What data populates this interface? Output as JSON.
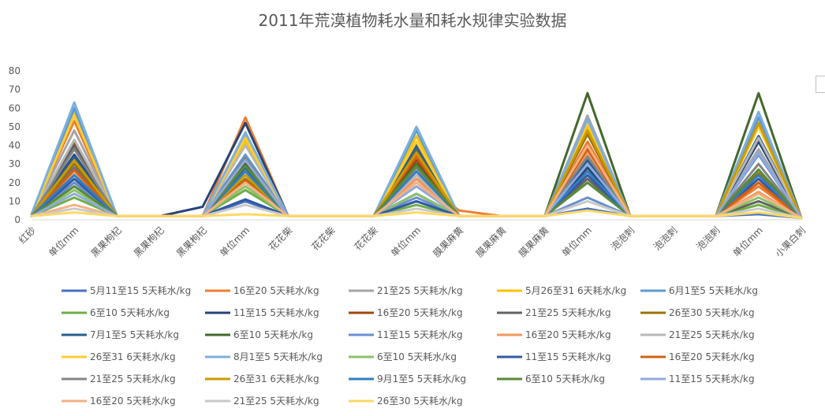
{
  "chart_data": {
    "type": "line",
    "title": "2011年荒漠植物耗水量和耗水规律实验数据",
    "xlabel": "",
    "ylabel": "",
    "ylim": [
      0,
      80
    ],
    "yticks": [
      0,
      10,
      20,
      30,
      40,
      50,
      60,
      70,
      80
    ],
    "grid": false,
    "legend_position": "bottom",
    "categories": [
      "红砂",
      "单位mm",
      "黑果枸杞",
      "黑果枸杞",
      "黑果枸杞",
      "单位mm",
      "花花柴",
      "花花柴",
      "花花柴",
      "单位mm",
      "膜果麻黄",
      "膜果麻黄",
      "膜果麻黄",
      "单位mm",
      "泡泡刺",
      "泡泡刺",
      "泡泡刺",
      "单位mm",
      "小果白刺"
    ],
    "series": [
      {
        "name": "5月11至15 5天耗水/kg",
        "color": "#4472c4",
        "values": [
          2,
          28,
          2,
          2,
          2,
          10,
          2,
          2,
          2,
          10,
          2,
          2,
          2,
          6,
          2,
          2,
          2,
          3,
          1
        ]
      },
      {
        "name": "16至20 5天耗水/kg",
        "color": "#ed7d31",
        "values": [
          3,
          53,
          2,
          2,
          2,
          55,
          2,
          2,
          2,
          22,
          5,
          2,
          2,
          42,
          2,
          2,
          2,
          18,
          1
        ]
      },
      {
        "name": "21至25 5天耗水/kg",
        "color": "#a5a5a5",
        "values": [
          3,
          48,
          2,
          2,
          2,
          45,
          2,
          2,
          2,
          20,
          2,
          2,
          2,
          56,
          2,
          2,
          2,
          38,
          1
        ]
      },
      {
        "name": "5月26至31 6天耗水/kg",
        "color": "#ffc000",
        "values": [
          3,
          58,
          2,
          2,
          2,
          42,
          2,
          2,
          2,
          45,
          2,
          2,
          2,
          50,
          2,
          2,
          2,
          52,
          1
        ]
      },
      {
        "name": "6月1至5 5天耗水/kg",
        "color": "#5b9bd5",
        "values": [
          3,
          60,
          2,
          2,
          2,
          35,
          2,
          2,
          2,
          48,
          2,
          2,
          2,
          30,
          2,
          2,
          2,
          55,
          1
        ]
      },
      {
        "name": "6至10 5天耗水/kg",
        "color": "#70ad47",
        "values": [
          2,
          12,
          2,
          2,
          2,
          16,
          2,
          2,
          2,
          8,
          2,
          2,
          2,
          22,
          2,
          2,
          2,
          8,
          1
        ]
      },
      {
        "name": "11至15 5天耗水/kg",
        "color": "#264478",
        "values": [
          2,
          35,
          2,
          2,
          7,
          52,
          2,
          2,
          2,
          14,
          2,
          2,
          2,
          28,
          2,
          2,
          2,
          42,
          1
        ]
      },
      {
        "name": "16至20 5天耗水/kg",
        "color": "#9e480e",
        "values": [
          2,
          42,
          2,
          2,
          2,
          20,
          2,
          2,
          2,
          32,
          2,
          2,
          2,
          40,
          2,
          2,
          2,
          20,
          1
        ]
      },
      {
        "name": "21至25 5天耗水/kg",
        "color": "#636363",
        "values": [
          2,
          40,
          2,
          2,
          2,
          30,
          2,
          2,
          2,
          38,
          2,
          2,
          2,
          22,
          2,
          2,
          2,
          10,
          1
        ]
      },
      {
        "name": "26至30 5天耗水/kg",
        "color": "#997300",
        "values": [
          2,
          30,
          2,
          2,
          2,
          22,
          2,
          2,
          2,
          36,
          2,
          2,
          2,
          46,
          2,
          2,
          2,
          25,
          1
        ]
      },
      {
        "name": "7月1至5 5天耗水/kg",
        "color": "#255e91",
        "values": [
          2,
          34,
          2,
          2,
          2,
          28,
          2,
          2,
          2,
          40,
          2,
          2,
          2,
          32,
          2,
          2,
          2,
          45,
          1
        ]
      },
      {
        "name": "6至10 5天耗水/kg",
        "color": "#43682b",
        "values": [
          2,
          20,
          2,
          2,
          2,
          30,
          2,
          2,
          2,
          30,
          2,
          2,
          2,
          68,
          2,
          2,
          2,
          68,
          1
        ]
      },
      {
        "name": "11至15 5天耗水/kg",
        "color": "#698ed0",
        "values": [
          2,
          20,
          2,
          2,
          2,
          34,
          2,
          2,
          2,
          12,
          2,
          2,
          2,
          12,
          2,
          2,
          2,
          35,
          1
        ]
      },
      {
        "name": "16至20 5天耗水/kg",
        "color": "#f1975a",
        "values": [
          2,
          26,
          2,
          2,
          2,
          21,
          2,
          2,
          2,
          22,
          2,
          2,
          2,
          36,
          2,
          2,
          2,
          15,
          1
        ]
      },
      {
        "name": "21至25 5天耗水/kg",
        "color": "#b7b7b7",
        "values": [
          2,
          43,
          2,
          2,
          2,
          40,
          2,
          2,
          2,
          24,
          2,
          2,
          2,
          38,
          2,
          2,
          2,
          44,
          1
        ]
      },
      {
        "name": "26至31 6天耗水/kg",
        "color": "#ffcd33",
        "values": [
          2,
          56,
          2,
          2,
          2,
          44,
          2,
          2,
          2,
          42,
          2,
          2,
          2,
          52,
          2,
          2,
          2,
          50,
          1
        ]
      },
      {
        "name": "8月1至5 5天耗水/kg",
        "color": "#7cafdd",
        "values": [
          3,
          63,
          2,
          2,
          2,
          47,
          2,
          2,
          2,
          50,
          2,
          2,
          2,
          54,
          2,
          2,
          2,
          58,
          1
        ]
      },
      {
        "name": "6至10 5天耗水/kg",
        "color": "#8cc168",
        "values": [
          2,
          16,
          2,
          2,
          2,
          18,
          2,
          2,
          2,
          14,
          2,
          2,
          2,
          20,
          2,
          2,
          2,
          12,
          1
        ]
      },
      {
        "name": "11至15 5天耗水/kg",
        "color": "#335aa1",
        "values": [
          2,
          22,
          2,
          2,
          2,
          11,
          2,
          2,
          2,
          10,
          2,
          2,
          2,
          24,
          2,
          2,
          2,
          22,
          1
        ]
      },
      {
        "name": "16至20 5天耗水/kg",
        "color": "#d26012",
        "values": [
          2,
          27,
          2,
          2,
          2,
          21,
          2,
          2,
          2,
          34,
          2,
          2,
          2,
          38,
          2,
          2,
          2,
          20,
          1
        ]
      },
      {
        "name": "21至25 5天耗水/kg",
        "color": "#848484",
        "values": [
          2,
          38,
          2,
          2,
          2,
          33,
          2,
          2,
          2,
          28,
          2,
          2,
          2,
          34,
          2,
          2,
          2,
          30,
          1
        ]
      },
      {
        "name": "26至31 6天耗水/kg",
        "color": "#cc9a00",
        "values": [
          2,
          32,
          2,
          2,
          2,
          24,
          2,
          2,
          2,
          36,
          2,
          2,
          2,
          48,
          2,
          2,
          2,
          52,
          1
        ]
      },
      {
        "name": "9月1至5 5天耗水/kg",
        "color": "#327dc2",
        "values": [
          2,
          24,
          2,
          2,
          2,
          26,
          2,
          2,
          2,
          26,
          2,
          2,
          2,
          26,
          2,
          2,
          2,
          24,
          1
        ]
      },
      {
        "name": "6至10 5天耗水/kg",
        "color": "#5a8a39",
        "values": [
          2,
          18,
          2,
          2,
          2,
          29,
          2,
          2,
          2,
          29,
          2,
          2,
          2,
          20,
          2,
          2,
          2,
          27,
          1
        ]
      },
      {
        "name": "11至15 5天耗水/kg",
        "color": "#8faadc",
        "values": [
          2,
          14,
          2,
          2,
          2,
          32,
          2,
          2,
          2,
          18,
          2,
          2,
          2,
          30,
          2,
          2,
          2,
          36,
          1
        ]
      },
      {
        "name": "16至20 5天耗水/kg",
        "color": "#f4b183",
        "values": [
          2,
          8,
          2,
          2,
          2,
          20,
          2,
          2,
          2,
          20,
          2,
          2,
          2,
          40,
          2,
          2,
          2,
          14,
          1
        ]
      },
      {
        "name": "21至25 5天耗水/kg",
        "color": "#c9c9c9",
        "values": [
          2,
          6,
          2,
          2,
          2,
          8,
          2,
          2,
          2,
          6,
          2,
          2,
          2,
          10,
          2,
          2,
          2,
          6,
          1
        ]
      },
      {
        "name": "26至30 5天耗水/kg",
        "color": "#ffd966",
        "values": [
          2,
          4,
          2,
          2,
          2,
          3,
          2,
          2,
          2,
          4,
          2,
          2,
          2,
          5,
          2,
          2,
          2,
          4,
          1
        ]
      }
    ]
  }
}
